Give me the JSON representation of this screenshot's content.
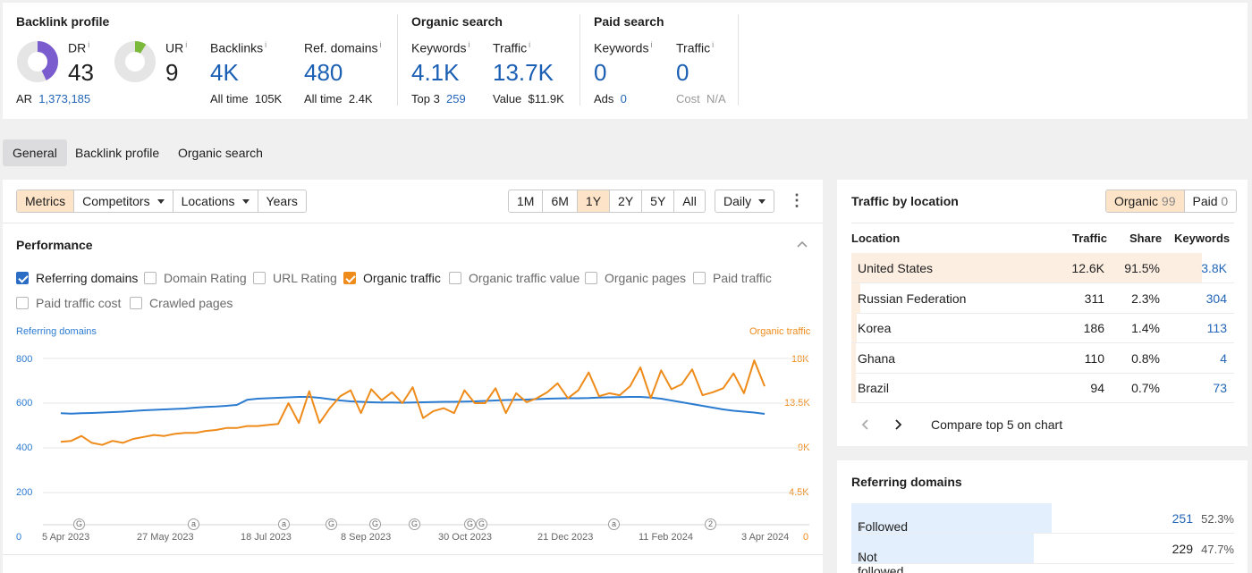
{
  "summary": {
    "backlink_profile": {
      "title": "Backlink profile",
      "dr_label": "DR",
      "dr_value": "43",
      "dr_fraction": 0.43,
      "ur_label": "UR",
      "ur_value": "9",
      "ur_fraction": 0.09,
      "ar_label": "AR",
      "ar_value": "1,373,185",
      "backlinks_label": "Backlinks",
      "backlinks_value": "4K",
      "backlinks_sub_label": "All time",
      "backlinks_sub_value": "105K",
      "refdomains_label": "Ref. domains",
      "refdomains_value": "480",
      "refdomains_sub_label": "All time",
      "refdomains_sub_value": "2.4K"
    },
    "organic_search": {
      "title": "Organic search",
      "keywords_label": "Keywords",
      "keywords_value": "4.1K",
      "keywords_sub_label": "Top 3",
      "keywords_sub_value": "259",
      "traffic_label": "Traffic",
      "traffic_value": "13.7K",
      "traffic_sub_label": "Value",
      "traffic_sub_value": "$11.9K"
    },
    "paid_search": {
      "title": "Paid search",
      "keywords_label": "Keywords",
      "keywords_value": "0",
      "keywords_sub_label": "Ads",
      "keywords_sub_value": "0",
      "traffic_label": "Traffic",
      "traffic_value": "0",
      "traffic_sub_label": "Cost",
      "traffic_sub_value": "N/A"
    },
    "info_glyph": "i"
  },
  "tabs": [
    "General",
    "Backlink profile",
    "Organic search"
  ],
  "toolbar": {
    "left": [
      "Metrics",
      "Competitors",
      "Locations",
      "Years"
    ],
    "ranges": [
      "1M",
      "6M",
      "1Y",
      "2Y",
      "5Y",
      "All"
    ],
    "active_range": "1Y",
    "interval": "Daily",
    "more": "⋮"
  },
  "performance": {
    "title": "Performance",
    "checkboxes": [
      {
        "label": "Referring domains",
        "checked": true,
        "color": "#2b6cc4"
      },
      {
        "label": "Domain Rating",
        "checked": false
      },
      {
        "label": "URL Rating",
        "checked": false
      },
      {
        "label": "Organic traffic",
        "checked": true,
        "color": "#ee8b1a"
      },
      {
        "label": "Organic traffic value",
        "checked": false
      },
      {
        "label": "Organic pages",
        "checked": false
      },
      {
        "label": "Paid traffic",
        "checked": false
      },
      {
        "label": "Paid traffic cost",
        "checked": false
      },
      {
        "label": "Crawled pages",
        "checked": false
      }
    ]
  },
  "chart_data": {
    "type": "line",
    "left_axis_title": "Referring domains",
    "right_axis_title": "Organic traffic",
    "left_ticks": [
      "800",
      "600",
      "400",
      "200",
      "0"
    ],
    "right_ticks": [
      "18K",
      "13.5K",
      "9K",
      "4.5K",
      "0"
    ],
    "left_ylim": [
      0,
      800
    ],
    "right_ylim": [
      0,
      18000
    ],
    "x_labels": [
      "5 Apr 2023",
      "27 May 2023",
      "18 Jul 2023",
      "8 Sep 2023",
      "30 Oct 2023",
      "21 Dec 2023",
      "11 Feb 2024",
      "3 Apr 2024"
    ],
    "annotations": [
      "G",
      "a",
      "a",
      "G",
      "G",
      "G",
      "G",
      "G",
      "a",
      "2"
    ],
    "colors": {
      "referring_domains": "#2b7bd0",
      "organic_traffic": "#ee8b1a"
    },
    "series": [
      {
        "name": "Referring domains",
        "axis": "left",
        "values": [
          555,
          553,
          555,
          556,
          558,
          560,
          562,
          565,
          568,
          570,
          572,
          574,
          576,
          580,
          583,
          585,
          588,
          592,
          615,
          620,
          622,
          624,
          626,
          628,
          628,
          624,
          618,
          612,
          608,
          606,
          604,
          603,
          603,
          602,
          603,
          604,
          605,
          606,
          606,
          607,
          608,
          610,
          612,
          614,
          615,
          616,
          618,
          620,
          621,
          622,
          622,
          623,
          625,
          626,
          627,
          628,
          628,
          625,
          620,
          612,
          604,
          596,
          588,
          580,
          572,
          566,
          562,
          558,
          552
        ]
      },
      {
        "name": "Organic traffic",
        "axis": "left",
        "values": [
          9600,
          9700,
          10200,
          9500,
          9300,
          9700,
          9500,
          9900,
          10100,
          10300,
          10200,
          10400,
          10500,
          10500,
          10700,
          10800,
          11000,
          11000,
          11200,
          11200,
          11300,
          11400,
          13500,
          11500,
          14700,
          11500,
          13000,
          14200,
          14800,
          12500,
          14900,
          13800,
          14600,
          13500,
          15100,
          12000,
          12700,
          13000,
          12500,
          14800,
          13500,
          13500,
          15000,
          12500,
          14500,
          13600,
          14000,
          14600,
          15500,
          14000,
          14800,
          16600,
          14200,
          14500,
          14300,
          15200,
          17100,
          14000,
          16800,
          14900,
          15400,
          16900,
          14300,
          14600,
          15000,
          16500,
          14500,
          17800,
          15200
        ]
      }
    ]
  },
  "traffic_by_location": {
    "title": "Traffic by location",
    "toggle_organic_label": "Organic",
    "toggle_organic_count": "99",
    "toggle_paid_label": "Paid",
    "toggle_paid_count": "0",
    "headers": [
      "Location",
      "Traffic",
      "Share",
      "Keywords"
    ],
    "rows": [
      {
        "location": "United States",
        "traffic": "12.6K",
        "share": "91.5%",
        "keywords": "3.8K",
        "share_fraction": 0.915
      },
      {
        "location": "Russian Federation",
        "traffic": "311",
        "share": "2.3%",
        "keywords": "304",
        "share_fraction": 0.023
      },
      {
        "location": "Korea",
        "traffic": "186",
        "share": "1.4%",
        "keywords": "113",
        "share_fraction": 0.014
      },
      {
        "location": "Ghana",
        "traffic": "110",
        "share": "0.8%",
        "keywords": "4",
        "share_fraction": 0.008
      },
      {
        "location": "Brazil",
        "traffic": "94",
        "share": "0.7%",
        "keywords": "73",
        "share_fraction": 0.007
      }
    ],
    "prev_icon": "‹",
    "next_icon": "›",
    "compare_label": "Compare top 5 on chart"
  },
  "referring_domains_panel": {
    "title": "Referring domains",
    "rows": [
      {
        "label": "Followed",
        "value": "251",
        "percent": "52.3%",
        "fraction": 0.523
      },
      {
        "label": "Not followed",
        "value": "229",
        "percent": "47.7%",
        "fraction": 0.477
      }
    ]
  }
}
